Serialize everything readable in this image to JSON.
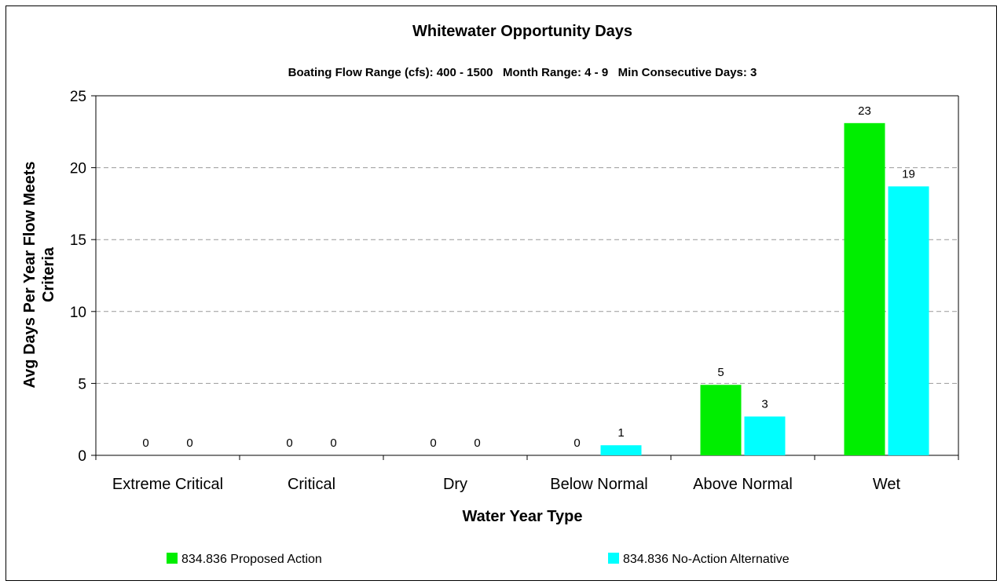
{
  "chart_data": {
    "type": "bar",
    "title": "Whitewater Opportunity Days",
    "subtitle": "Boating Flow Range (cfs): 400 - 1500   Month Range: 4 - 9   Min Consecutive Days: 3",
    "xlabel": "Water Year Type",
    "ylabel": "Avg Days Per Year Flow Meets Criteria",
    "ylim": [
      0,
      25
    ],
    "yticks": [
      0,
      5,
      10,
      15,
      20,
      25
    ],
    "grid": true,
    "legend_position": "bottom",
    "categories": [
      "Extreme Critical",
      "Critical",
      "Dry",
      "Below Normal",
      "Above Normal",
      "Wet"
    ],
    "series": [
      {
        "name": "834.836 Proposed Action",
        "color": "#00ee00",
        "values": [
          0,
          0,
          0,
          0,
          4.9,
          23.1
        ],
        "labels": [
          "0",
          "0",
          "0",
          "0",
          "5",
          "23"
        ]
      },
      {
        "name": "834.836 No-Action Alternative",
        "color": "#00ffff",
        "values": [
          0,
          0,
          0,
          0.7,
          2.7,
          18.7
        ],
        "labels": [
          "0",
          "0",
          "0",
          "1",
          "3",
          "19"
        ]
      }
    ]
  }
}
